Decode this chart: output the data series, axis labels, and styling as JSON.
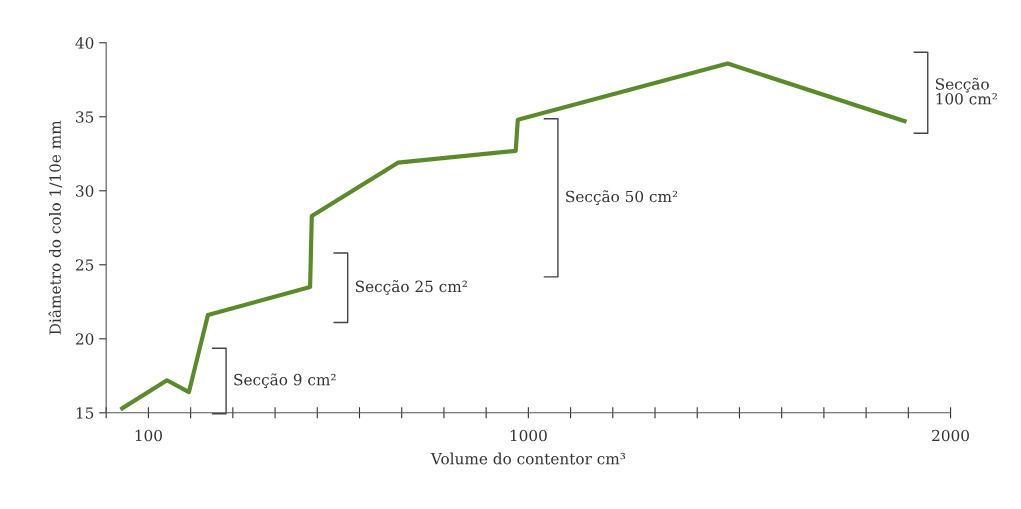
{
  "chart_data": {
    "type": "line",
    "xlabel": "Volume do contentor cm³",
    "ylabel": "Diâmetro do colo 1/10e mm",
    "series": [
      {
        "color": "#5b8a2c",
        "x": [
          38,
          144,
          196,
          241,
          483,
          487,
          691,
          970,
          975,
          1472,
          1891
        ],
        "values": [
          15.3,
          17.2,
          16.4,
          21.6,
          23.5,
          28.3,
          31.9,
          32.7,
          34.8,
          38.6,
          34.7
        ]
      }
    ],
    "xlim": [
      0,
      2000
    ],
    "xticks": [
      {
        "value": 0,
        "label": null
      },
      100,
      {
        "value": 200,
        "label": null
      },
      {
        "value": 300,
        "label": null
      },
      {
        "value": 400,
        "label": null
      },
      {
        "value": 500,
        "label": null
      },
      {
        "value": 600,
        "label": null
      },
      {
        "value": 700,
        "label": null
      },
      {
        "value": 800,
        "label": null
      },
      {
        "value": 900,
        "label": null
      },
      1000,
      {
        "value": 1100,
        "label": null
      },
      {
        "value": 1200,
        "label": null
      },
      {
        "value": 1300,
        "label": null
      },
      {
        "value": 1400,
        "label": null
      },
      {
        "value": 1500,
        "label": null
      },
      {
        "value": 1600,
        "label": null
      },
      {
        "value": 1700,
        "label": null
      },
      {
        "value": 1800,
        "label": null
      },
      {
        "value": 1900,
        "label": null
      },
      2000
    ],
    "ylim": [
      15,
      40
    ],
    "yticks": [
      15,
      20,
      25,
      30,
      35,
      40
    ],
    "annotations": [
      "Secção 9 cm²",
      "Secção 25 cm²",
      "Secção 50 cm²",
      "Secção\n100 cm²"
    ],
    "grid": false,
    "legend": false,
    "marker": "none",
    "line_style": "solid"
  }
}
